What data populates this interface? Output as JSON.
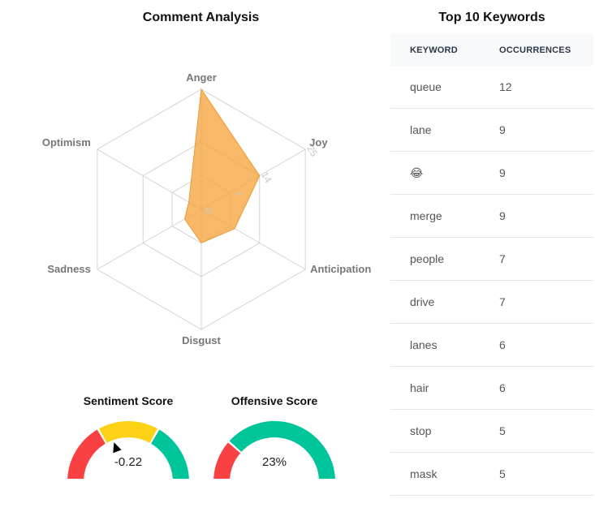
{
  "chart_data": [
    {
      "type": "radar",
      "title": "Comment Analysis",
      "axes": [
        "Anger",
        "Joy",
        "Anticipation",
        "Disgust",
        "Sadness",
        "Optimism"
      ],
      "values": [
        25,
        14,
        8,
        7,
        4,
        3
      ],
      "rlim": [
        0,
        25
      ],
      "ticks": [
        0,
        7,
        14,
        25
      ],
      "grid": true,
      "colors": {
        "fill": "#f5a742",
        "stroke": "#e99a3a",
        "grid": "#d3d3d3"
      }
    },
    {
      "type": "table",
      "title": "Top 10 Keywords",
      "columns": [
        "KEYWORD",
        "OCCURRENCES"
      ],
      "rows": [
        [
          "queue",
          "12"
        ],
        [
          "lane",
          "9"
        ],
        [
          "😂",
          "9"
        ],
        [
          "merge",
          "9"
        ],
        [
          "people",
          "7"
        ],
        [
          "drive",
          "7"
        ],
        [
          "lanes",
          "6"
        ],
        [
          "hair",
          "6"
        ],
        [
          "stop",
          "5"
        ],
        [
          "mask",
          "5"
        ]
      ]
    },
    {
      "type": "gauge",
      "title": "Sentiment Score",
      "value": -0.22,
      "value_label": "-0.22",
      "range": [
        -1,
        1
      ],
      "bands": [
        {
          "from": -1,
          "to": -0.33,
          "color": "#f94144"
        },
        {
          "from": -0.33,
          "to": 0.33,
          "color": "#fcd116"
        },
        {
          "from": 0.33,
          "to": 1,
          "color": "#00c49a"
        }
      ]
    },
    {
      "type": "gauge",
      "title": "Offensive Score",
      "value": 23,
      "value_label": "23%",
      "range": [
        0,
        100
      ],
      "colors": {
        "filled": "#f94144",
        "remaining": "#00c49a"
      }
    }
  ]
}
